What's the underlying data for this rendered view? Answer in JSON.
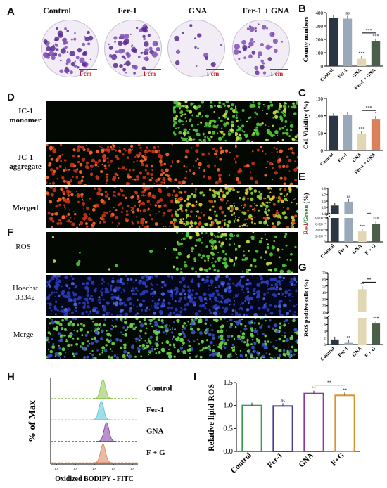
{
  "panels": {
    "A": "A",
    "B": "B",
    "C": "C",
    "D": "D",
    "E": "E",
    "F": "F",
    "G": "G",
    "H": "H",
    "I": "I"
  },
  "columns": [
    "Control",
    "Fer-1",
    "GNA",
    "Fer-1 + GNA"
  ],
  "scale_bar": "1 cm",
  "rows_D": [
    "JC-1\nmonomer",
    "JC-1\naggregate",
    "Merged"
  ],
  "rows_F": [
    "ROS",
    "Hoechst\n33342",
    "Merge"
  ],
  "colors": {
    "dark": "#2b3645",
    "grey": "#9aa9ba",
    "sand": "#e2d7b5",
    "green": "#4a5e49",
    "orange": "#d9825a",
    "purple": "#7b3aa6",
    "cyan": "#52c4d9",
    "lime": "#8cc34a",
    "red_text": "#b22222",
    "green_text": "#2f8b2f"
  },
  "chart_data": [
    {
      "id": "B",
      "type": "bar",
      "categories": [
        "Control",
        "Fer-1",
        "GNA",
        "Fer-1 + GNA"
      ],
      "values": [
        360,
        355,
        55,
        185
      ],
      "ylabel": "County numbers",
      "ylim": [
        0,
        400
      ],
      "yticks": [
        0,
        100,
        200,
        300,
        400
      ],
      "sig": [
        "",
        "ns",
        "***",
        "***"
      ],
      "bracket": "***"
    },
    {
      "id": "C",
      "type": "bar",
      "categories": [
        "Control",
        "Fer-1",
        "GNA",
        "Fer-1 + GNA"
      ],
      "values": [
        100,
        103,
        47,
        91
      ],
      "ylabel": "Cell Viability (%)",
      "ylim": [
        0,
        150
      ],
      "yticks": [
        0,
        50,
        100,
        150
      ],
      "sig": [
        "",
        "",
        "***",
        "*"
      ],
      "bracket": "***"
    },
    {
      "id": "E",
      "type": "bar",
      "categories": [
        "Control",
        "Fer-1",
        "GNA",
        "F + G"
      ],
      "values": [
        0.53,
        0.59,
        0.00035,
        0.0006
      ],
      "ylabel_parts": [
        "Red",
        "/",
        "Green",
        " (%)"
      ],
      "ylim_upper": [
        0.4,
        0.8
      ],
      "ylim_lower": [
        0,
        0.0008
      ],
      "yticks_upper": [
        "0.4",
        "0.5",
        "0.6",
        "0.7",
        "0.8"
      ],
      "yticks_lower": [
        "0",
        "2×10⁻⁴",
        "4×10⁻⁴",
        "6×10⁻⁴",
        "8×10⁻⁴"
      ],
      "sig": [
        "",
        "ns",
        "***",
        "***"
      ],
      "bracket": "**"
    },
    {
      "id": "G",
      "type": "bar",
      "categories": [
        "Control",
        "Fer-1",
        "GNA",
        "F + G"
      ],
      "values": [
        1.5,
        0.5,
        45,
        6.3
      ],
      "ylabel": "ROS positive cells (%)",
      "ylim_upper": [
        10,
        70
      ],
      "ylim_lower": [
        0,
        8
      ],
      "yticks_upper": [
        "10",
        "20",
        "30",
        "40",
        "50",
        "60",
        "70"
      ],
      "yticks_lower": [
        "0",
        "2",
        "4",
        "6",
        "8"
      ],
      "sig": [
        "",
        "**",
        "**",
        "***"
      ],
      "bracket": "**"
    },
    {
      "id": "H",
      "type": "histogram",
      "ylabel": "% of Max",
      "xlabel": "Oxidized BODIPY - FITC",
      "series": [
        "Control",
        "Fer-1",
        "GNA",
        "F + G"
      ],
      "peaks": [
        0.6,
        0.58,
        0.64,
        0.6
      ],
      "xticks": [
        "10²",
        "10³",
        "10⁴",
        "10⁵",
        "10⁶"
      ]
    },
    {
      "id": "I",
      "type": "bar",
      "categories": [
        "Control",
        "Fer-1",
        "GNA",
        "F+G"
      ],
      "values": [
        1.0,
        0.99,
        1.26,
        1.22
      ],
      "ylabel": "Relative lipid ROS",
      "ylim": [
        0,
        1.5
      ],
      "yticks": [
        "0.0",
        "0.5",
        "1.0",
        "1.5"
      ],
      "sig": [
        "",
        "ns",
        "**",
        "**"
      ],
      "bracket": "**"
    }
  ]
}
